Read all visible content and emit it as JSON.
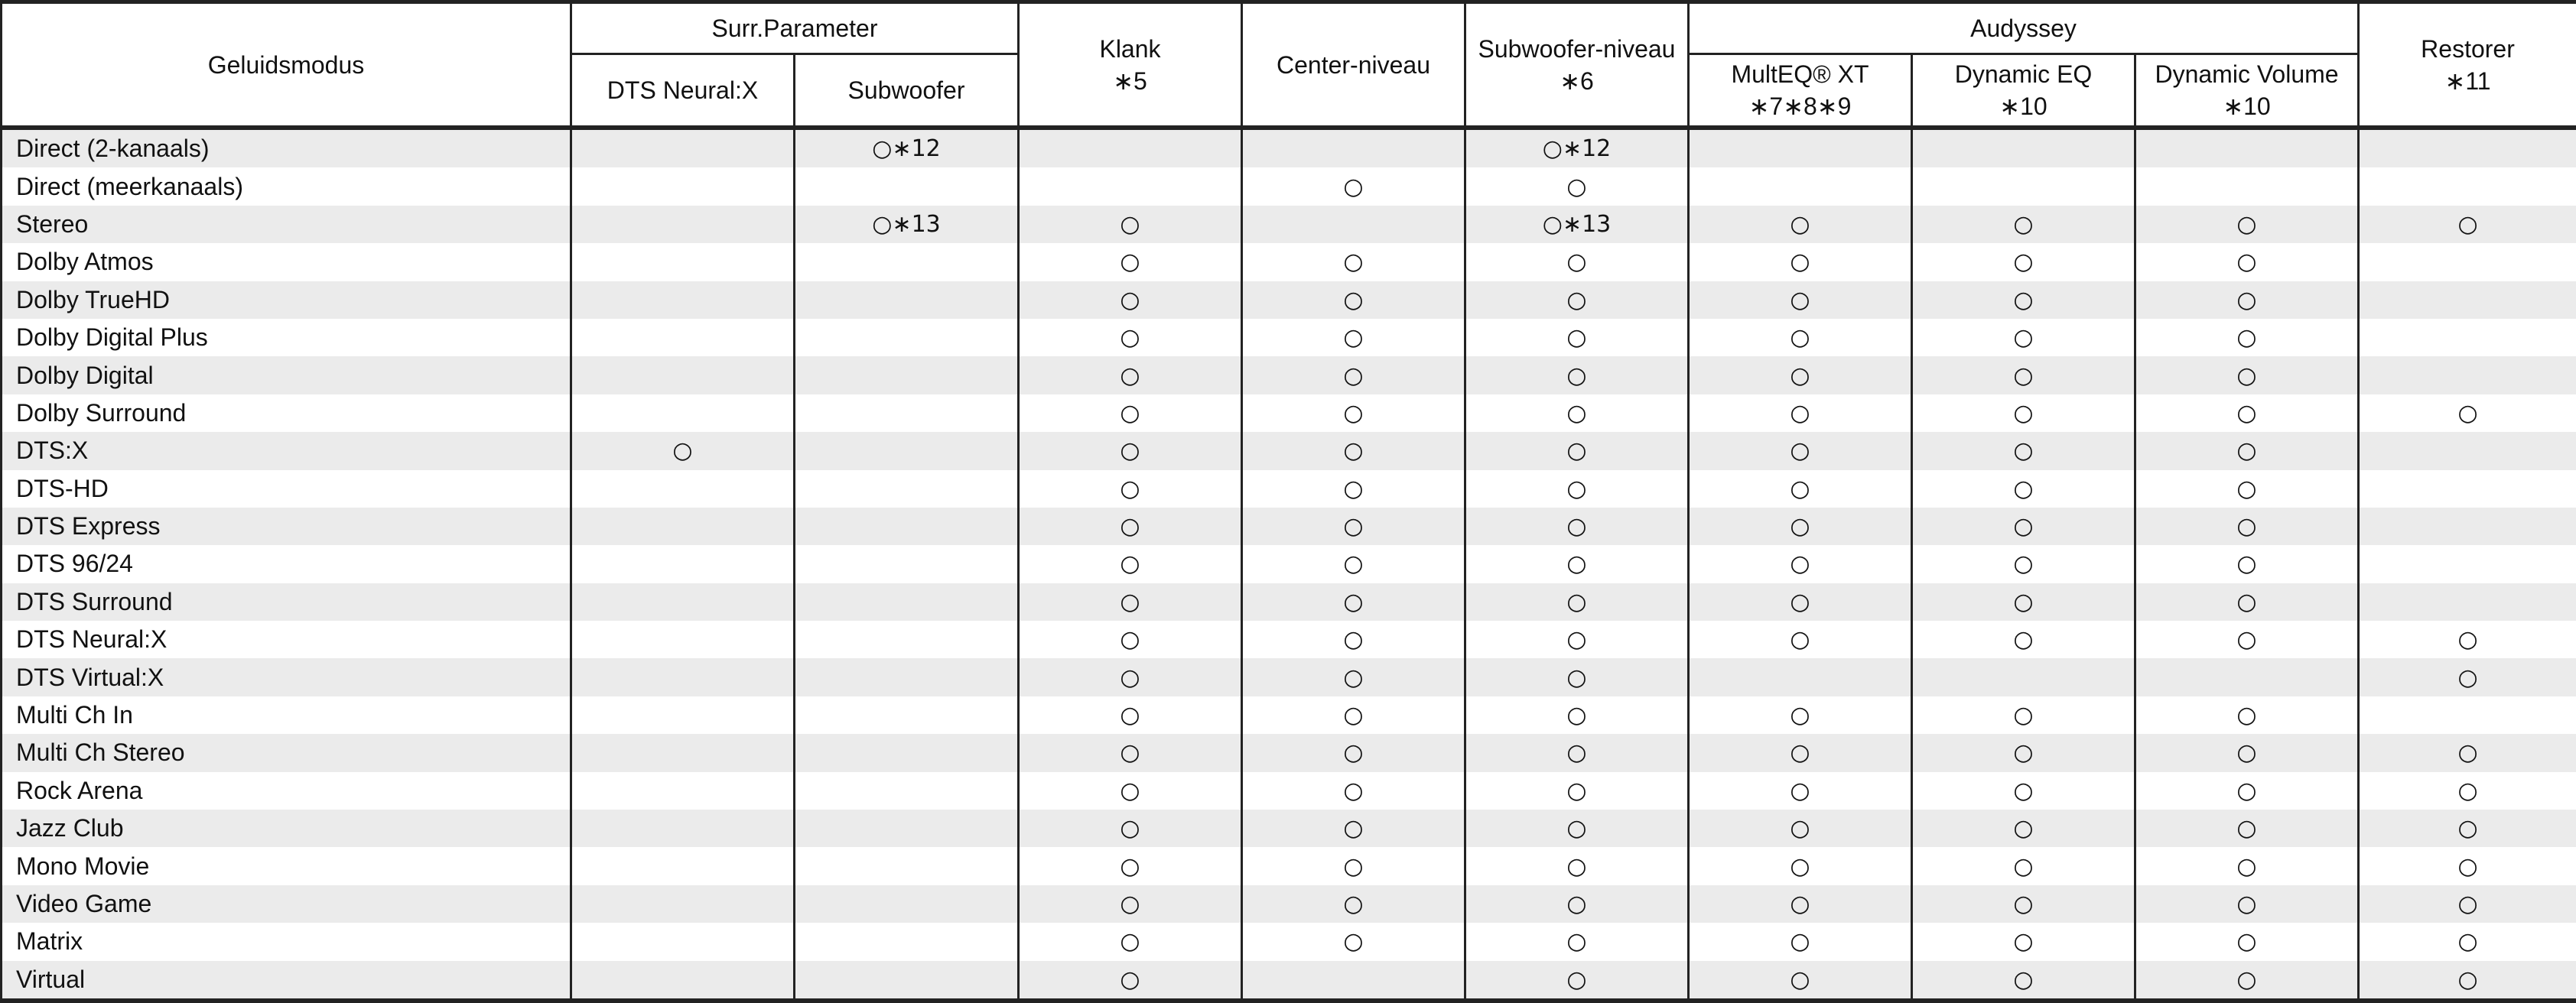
{
  "header": {
    "mode": "Geluidsmodus",
    "surr_parameter": "Surr.Parameter",
    "dts_neural_x": "DTS Neural:X",
    "subwoofer": "Subwoofer",
    "klank": "Klank",
    "klank_note": "∗5",
    "center_niveau": "Center-niveau",
    "subwoofer_niveau": "Subwoofer-niveau",
    "subwoofer_niveau_note": "∗6",
    "audyssey": "Audyssey",
    "multeq": "MultEQ® XT",
    "multeq_note": "∗7∗8∗9",
    "dynamic_eq": "Dynamic EQ",
    "dynamic_eq_note": "∗10",
    "dynamic_volume": "Dynamic Volume",
    "dynamic_volume_note": "∗10",
    "restorer": "Restorer",
    "restorer_note": "∗11"
  },
  "rows": [
    {
      "mode": "Direct (2-kanaals)",
      "cells": [
        "",
        "○∗12",
        "",
        "",
        "○∗12",
        "",
        "",
        "",
        ""
      ]
    },
    {
      "mode": "Direct (meerkanaals)",
      "cells": [
        "",
        "",
        "",
        "○",
        "○",
        "",
        "",
        "",
        ""
      ]
    },
    {
      "mode": "Stereo",
      "cells": [
        "",
        "○∗13",
        "○",
        "",
        "○∗13",
        "○",
        "○",
        "○",
        "○"
      ]
    },
    {
      "mode": "Dolby Atmos",
      "cells": [
        "",
        "",
        "○",
        "○",
        "○",
        "○",
        "○",
        "○",
        ""
      ]
    },
    {
      "mode": "Dolby TrueHD",
      "cells": [
        "",
        "",
        "○",
        "○",
        "○",
        "○",
        "○",
        "○",
        ""
      ]
    },
    {
      "mode": "Dolby Digital Plus",
      "cells": [
        "",
        "",
        "○",
        "○",
        "○",
        "○",
        "○",
        "○",
        ""
      ]
    },
    {
      "mode": "Dolby Digital",
      "cells": [
        "",
        "",
        "○",
        "○",
        "○",
        "○",
        "○",
        "○",
        ""
      ]
    },
    {
      "mode": "Dolby Surround",
      "cells": [
        "",
        "",
        "○",
        "○",
        "○",
        "○",
        "○",
        "○",
        "○"
      ]
    },
    {
      "mode": "DTS:X",
      "cells": [
        "○",
        "",
        "○",
        "○",
        "○",
        "○",
        "○",
        "○",
        ""
      ]
    },
    {
      "mode": "DTS-HD",
      "cells": [
        "",
        "",
        "○",
        "○",
        "○",
        "○",
        "○",
        "○",
        ""
      ]
    },
    {
      "mode": "DTS Express",
      "cells": [
        "",
        "",
        "○",
        "○",
        "○",
        "○",
        "○",
        "○",
        ""
      ]
    },
    {
      "mode": "DTS 96/24",
      "cells": [
        "",
        "",
        "○",
        "○",
        "○",
        "○",
        "○",
        "○",
        ""
      ]
    },
    {
      "mode": "DTS Surround",
      "cells": [
        "",
        "",
        "○",
        "○",
        "○",
        "○",
        "○",
        "○",
        ""
      ]
    },
    {
      "mode": "DTS Neural:X",
      "cells": [
        "",
        "",
        "○",
        "○",
        "○",
        "○",
        "○",
        "○",
        "○"
      ]
    },
    {
      "mode": "DTS Virtual:X",
      "cells": [
        "",
        "",
        "○",
        "○",
        "○",
        "",
        "",
        "",
        "○"
      ]
    },
    {
      "mode": "Multi Ch In",
      "cells": [
        "",
        "",
        "○",
        "○",
        "○",
        "○",
        "○",
        "○",
        ""
      ]
    },
    {
      "mode": "Multi Ch Stereo",
      "cells": [
        "",
        "",
        "○",
        "○",
        "○",
        "○",
        "○",
        "○",
        "○"
      ]
    },
    {
      "mode": "Rock Arena",
      "cells": [
        "",
        "",
        "○",
        "○",
        "○",
        "○",
        "○",
        "○",
        "○"
      ]
    },
    {
      "mode": "Jazz Club",
      "cells": [
        "",
        "",
        "○",
        "○",
        "○",
        "○",
        "○",
        "○",
        "○"
      ]
    },
    {
      "mode": "Mono Movie",
      "cells": [
        "",
        "",
        "○",
        "○",
        "○",
        "○",
        "○",
        "○",
        "○"
      ]
    },
    {
      "mode": "Video Game",
      "cells": [
        "",
        "",
        "○",
        "○",
        "○",
        "○",
        "○",
        "○",
        "○"
      ]
    },
    {
      "mode": "Matrix",
      "cells": [
        "",
        "",
        "○",
        "○",
        "○",
        "○",
        "○",
        "○",
        "○"
      ]
    },
    {
      "mode": "Virtual",
      "cells": [
        "",
        "",
        "○",
        "",
        "○",
        "○",
        "○",
        "○",
        "○"
      ]
    }
  ]
}
